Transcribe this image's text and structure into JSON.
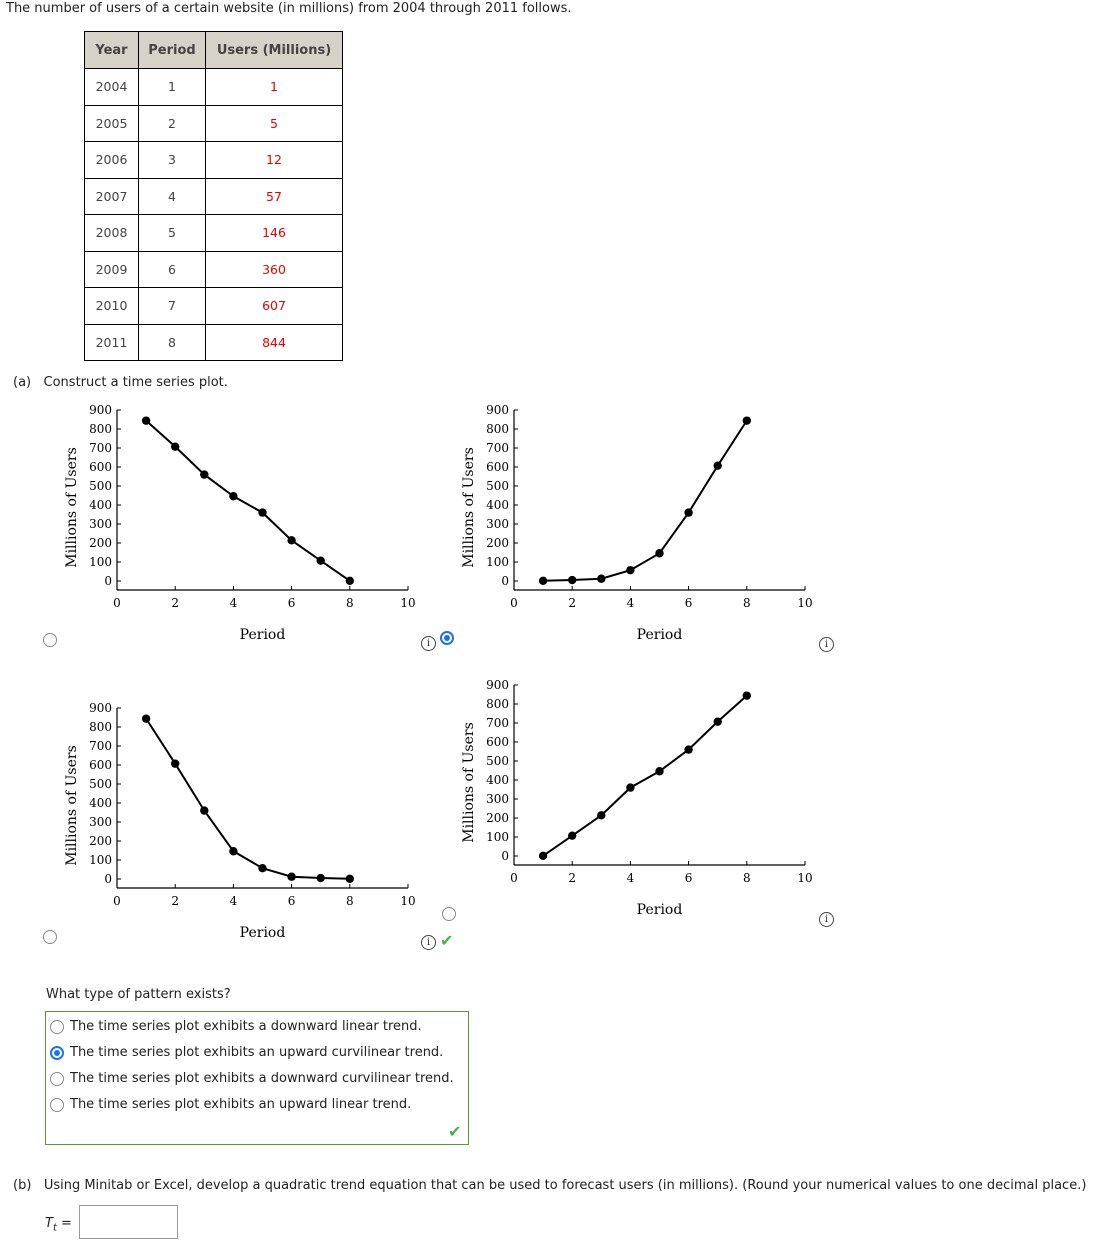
{
  "intro": "The number of users of a certain website (in millions) from 2004 through 2011 follows.",
  "table": {
    "headers": [
      "Year",
      "Period",
      "Users (Millions)"
    ],
    "rows": [
      [
        "2004",
        "1",
        "1"
      ],
      [
        "2005",
        "2",
        "5"
      ],
      [
        "2006",
        "3",
        "12"
      ],
      [
        "2007",
        "4",
        "57"
      ],
      [
        "2008",
        "5",
        "146"
      ],
      [
        "2009",
        "6",
        "360"
      ],
      [
        "2010",
        "7",
        "607"
      ],
      [
        "2011",
        "8",
        "844"
      ]
    ]
  },
  "part_a": {
    "label": "(a)",
    "prompt": "Construct a time series plot."
  },
  "chart_data": [
    {
      "type": "line",
      "option": "A",
      "selected": false,
      "x": [
        1,
        2,
        3,
        4,
        5,
        6,
        7,
        8
      ],
      "values": [
        844,
        707,
        560,
        446,
        360,
        214,
        107,
        1
      ],
      "xlabel": "Period",
      "ylabel": "Millions of Users",
      "xlim": [
        0,
        10
      ],
      "ylim": [
        0,
        900
      ],
      "xticks": [
        0,
        2,
        4,
        6,
        8,
        10
      ],
      "yticks": [
        0,
        100,
        200,
        300,
        400,
        500,
        600,
        700,
        800,
        900
      ]
    },
    {
      "type": "line",
      "option": "B",
      "selected": true,
      "correct": true,
      "x": [
        1,
        2,
        3,
        4,
        5,
        6,
        7,
        8
      ],
      "values": [
        1,
        5,
        12,
        57,
        146,
        360,
        607,
        844
      ],
      "xlabel": "Period",
      "ylabel": "Millions of Users",
      "xlim": [
        0,
        10
      ],
      "ylim": [
        0,
        900
      ],
      "xticks": [
        0,
        2,
        4,
        6,
        8,
        10
      ],
      "yticks": [
        0,
        100,
        200,
        300,
        400,
        500,
        600,
        700,
        800,
        900
      ]
    },
    {
      "type": "line",
      "option": "C",
      "selected": false,
      "x": [
        1,
        2,
        3,
        4,
        5,
        6,
        7,
        8
      ],
      "values": [
        844,
        607,
        360,
        146,
        57,
        12,
        5,
        1
      ],
      "xlabel": "Period",
      "ylabel": "Millions of Users",
      "xlim": [
        0,
        10
      ],
      "ylim": [
        0,
        900
      ],
      "xticks": [
        0,
        2,
        4,
        6,
        8,
        10
      ],
      "yticks": [
        0,
        100,
        200,
        300,
        400,
        500,
        600,
        700,
        800,
        900
      ]
    },
    {
      "type": "line",
      "option": "D",
      "selected": false,
      "x": [
        1,
        2,
        3,
        4,
        5,
        6,
        7,
        8
      ],
      "values": [
        1,
        107,
        214,
        360,
        446,
        560,
        707,
        844
      ],
      "xlabel": "Period",
      "ylabel": "Millions of Users",
      "xlim": [
        0,
        10
      ],
      "ylim": [
        0,
        900
      ],
      "xticks": [
        0,
        2,
        4,
        6,
        8,
        10
      ],
      "yticks": [
        0,
        100,
        200,
        300,
        400,
        500,
        600,
        700,
        800,
        900
      ]
    }
  ],
  "pattern": {
    "question": "What type of pattern exists?",
    "options": [
      "The time series plot exhibits a downward linear trend.",
      "The time series plot exhibits an upward curvilinear trend.",
      "The time series plot exhibits a downward curvilinear trend.",
      "The time series plot exhibits an upward linear trend."
    ],
    "selected_index": 1
  },
  "part_b": {
    "label": "(b)",
    "prompt": "Using Minitab or Excel, develop a quadratic trend equation that can be used to forecast users (in millions). (Round your numerical values to one decimal place.)",
    "eq_label": "T",
    "eq_sub": "t",
    "eq_equals": "=",
    "input_value": ""
  },
  "colors": {
    "accent": "#1a73e8",
    "value_red": "#ee0000",
    "correct_green": "#4caf50",
    "box_border": "#5a9a2e",
    "header_bg": "#d6d2c8"
  }
}
